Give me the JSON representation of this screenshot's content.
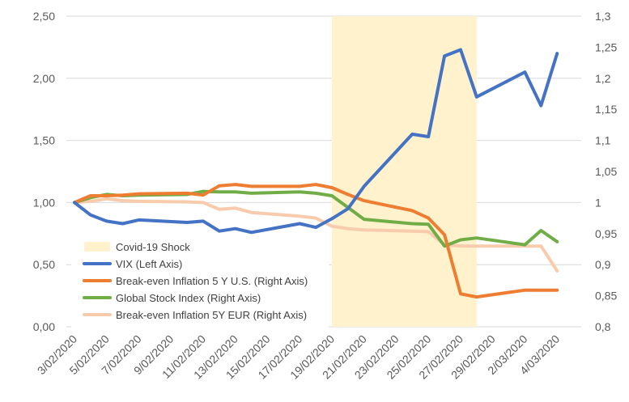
{
  "chart_data": {
    "type": "line",
    "x": [
      "3/02/2020",
      "4/02/2020",
      "5/02/2020",
      "6/02/2020",
      "7/02/2020",
      "10/02/2020",
      "11/02/2020",
      "12/02/2020",
      "13/02/2020",
      "14/02/2020",
      "17/02/2020",
      "18/02/2020",
      "19/02/2020",
      "20/02/2020",
      "21/02/2020",
      "24/02/2020",
      "25/02/2020",
      "26/02/2020",
      "27/02/2020",
      "28/02/2020",
      "2/03/2020",
      "3/03/2020",
      "4/03/2020",
      "5/03/2020"
    ],
    "x_tick_labels": [
      "3/02/2020",
      "5/02/2020",
      "7/02/2020",
      "9/02/2020",
      "11/02/2020",
      "13/02/2020",
      "15/02/2020",
      "17/02/2020",
      "19/02/2020",
      "21/02/2020",
      "23/02/2020",
      "25/02/2020",
      "27/02/2020",
      "29/02/2020",
      "2/03/2020",
      "4/03/2020"
    ],
    "y_left": {
      "ylim": [
        0,
        2.5
      ],
      "ticks": [
        "0,00",
        "0,50",
        "1,00",
        "1,50",
        "2,00",
        "2,50"
      ]
    },
    "y_right": {
      "ylim": [
        0.8,
        1.3
      ],
      "ticks": [
        "0,8",
        "0,85",
        "0,9",
        "0,95",
        "1",
        "1,05",
        "1,1",
        "1,15",
        "1,2",
        "1,25",
        "1,3"
      ]
    },
    "shaded_region": {
      "name": "Covid-19 Shock",
      "x_start": "19/02/2020",
      "x_end": "28/02/2020",
      "color": "#fff2cc"
    },
    "series": [
      {
        "name": "VIX (Left Axis)",
        "axis": "left",
        "color": "#4472c4",
        "values": [
          1.0,
          0.9,
          0.85,
          0.83,
          0.86,
          0.84,
          0.85,
          0.77,
          0.79,
          0.76,
          0.83,
          0.8,
          0.87,
          0.95,
          1.13,
          1.55,
          1.53,
          2.18,
          2.23,
          1.85,
          2.05,
          1.78,
          2.2,
          null
        ]
      },
      {
        "name": "Break-even Inflation 5 Y U.S. (Right Axis)",
        "axis": "right",
        "color": "#ed7d31",
        "values": [
          1.0,
          1.011,
          1.011,
          1.012,
          1.014,
          1.015,
          1.012,
          1.027,
          1.029,
          1.026,
          1.026,
          1.029,
          1.024,
          1.013,
          1.003,
          0.987,
          0.975,
          0.948,
          0.853,
          0.848,
          0.859,
          0.859,
          0.859,
          null
        ]
      },
      {
        "name": "Global Stock Index (Right Axis)",
        "axis": "right",
        "color": "#70ad47",
        "values": [
          1.0,
          1.008,
          1.013,
          1.011,
          1.012,
          1.013,
          1.018,
          1.017,
          1.017,
          1.015,
          1.017,
          1.015,
          1.011,
          0.992,
          0.973,
          0.966,
          0.965,
          0.93,
          0.94,
          0.943,
          0.932,
          0.955,
          0.937,
          null
        ]
      },
      {
        "name": "Break-even Inflation 5Y EUR (Right Axis)",
        "axis": "right",
        "color": "#f8cbad",
        "values": [
          1.0,
          1.002,
          1.006,
          1.003,
          1.002,
          1.001,
          1.0,
          0.989,
          0.991,
          0.984,
          0.978,
          0.975,
          0.962,
          0.958,
          0.956,
          0.954,
          0.953,
          0.932,
          0.93,
          0.93,
          0.93,
          0.93,
          0.89,
          null
        ]
      }
    ],
    "legend": {
      "placement": "bottom-left",
      "entries": [
        "Covid-19 Shock",
        "VIX (Left Axis)",
        "Break-even Inflation 5 Y U.S. (Right Axis)",
        "Global Stock Index (Right Axis)",
        "Break-even Inflation 5Y EUR (Right Axis)"
      ]
    },
    "grid": true
  }
}
